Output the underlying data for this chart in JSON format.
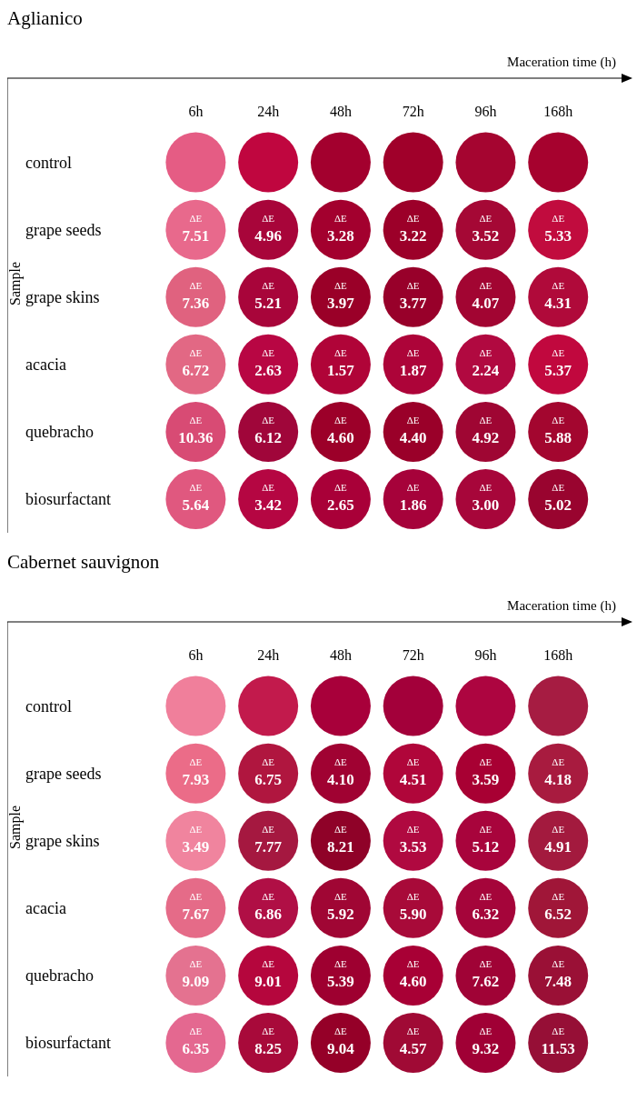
{
  "chart_data": [
    {
      "type": "heatmap",
      "title": "Aglianico",
      "xlabel": "Maceration time (h)",
      "ylabel": "Sample",
      "categories": [
        "6h",
        "24h",
        "48h",
        "72h",
        "96h",
        "168h"
      ],
      "y_categories": [
        "control",
        "grape seeds",
        "grape skins",
        "acacia",
        "quebracho",
        "biosurfactant"
      ],
      "cells": [
        [
          null,
          null,
          null,
          null,
          null,
          null
        ],
        [
          7.51,
          4.96,
          3.28,
          3.22,
          3.52,
          5.33
        ],
        [
          7.36,
          5.21,
          3.97,
          3.77,
          4.07,
          4.31
        ],
        [
          6.72,
          2.63,
          1.57,
          1.87,
          2.24,
          5.37
        ],
        [
          10.36,
          6.12,
          4.6,
          4.4,
          4.92,
          5.88
        ],
        [
          5.64,
          3.42,
          2.65,
          1.86,
          3.0,
          5.02
        ]
      ],
      "cell_labels": [
        [
          null,
          null,
          null,
          null,
          null,
          null
        ],
        [
          "7.51",
          "4.96",
          "3.28",
          "3.22",
          "3.52",
          "5.33"
        ],
        [
          "7.36",
          "5.21",
          "3.97",
          "3.77",
          "4.07",
          "4.31"
        ],
        [
          "6.72",
          "2.63",
          "1.57",
          "1.87",
          "2.24",
          "5.37"
        ],
        [
          "10.36",
          "6.12",
          "4.60",
          "4.40",
          "4.92",
          "5.88"
        ],
        [
          "5.64",
          "3.42",
          "2.65",
          "1.86",
          "3.00",
          "5.02"
        ]
      ],
      "annotations": [
        "ΔE"
      ],
      "data_labels": true,
      "colors": [
        [
          "#e55c84",
          "#c0063f",
          "#a3002e",
          "#a0002a",
          "#a50530",
          "#a6022e"
        ],
        [
          "#e8698c",
          "#a8053a",
          "#a3002e",
          "#9c0029",
          "#a50835",
          "#c10c3e"
        ],
        [
          "#e0627f",
          "#a8053a",
          "#9a0028",
          "#98002a",
          "#a20532",
          "#b00a3a"
        ],
        [
          "#e26884",
          "#b80643",
          "#b00438",
          "#ad0439",
          "#b10940",
          "#c1083e"
        ],
        [
          "#d84b74",
          "#a0063a",
          "#9c0029",
          "#9a0029",
          "#9f0633",
          "#a3062f"
        ],
        [
          "#e0587f",
          "#b50642",
          "#a90038",
          "#a6023a",
          "#a7063a",
          "#99042f"
        ]
      ]
    },
    {
      "type": "heatmap",
      "title": "Cabernet sauvignon",
      "xlabel": "Maceration time (h)",
      "ylabel": "Sample",
      "categories": [
        "6h",
        "24h",
        "48h",
        "72h",
        "96h",
        "168h"
      ],
      "y_categories": [
        "control",
        "grape seeds",
        "grape skins",
        "acacia",
        "quebracho",
        "biosurfactant"
      ],
      "cells": [
        [
          null,
          null,
          null,
          null,
          null,
          null
        ],
        [
          7.93,
          6.75,
          4.1,
          4.51,
          3.59,
          4.18
        ],
        [
          3.49,
          7.77,
          8.21,
          3.53,
          5.12,
          4.91
        ],
        [
          7.67,
          6.86,
          5.92,
          5.9,
          6.32,
          6.52
        ],
        [
          9.09,
          9.01,
          5.39,
          4.6,
          7.62,
          7.48
        ],
        [
          6.35,
          8.25,
          9.04,
          4.57,
          9.32,
          11.53
        ]
      ],
      "cell_labels": [
        [
          null,
          null,
          null,
          null,
          null,
          null
        ],
        [
          "7.93",
          "6.75",
          "4.10",
          "4.51",
          "3.59",
          "4.18"
        ],
        [
          "3.49",
          "7.77",
          "8.21",
          "3.53",
          "5.12",
          "4.91"
        ],
        [
          "7.67",
          "6.86",
          "5.92",
          "5.90",
          "6.32",
          "6.52"
        ],
        [
          "9.09",
          "9.01",
          "5.39",
          "4.60",
          "7.62",
          "7.48"
        ],
        [
          "6.35",
          "8.25",
          "9.04",
          "4.57",
          "9.32",
          "11.53"
        ]
      ],
      "annotations": [
        "ΔE"
      ],
      "data_labels": true,
      "colors": [
        [
          "#f07f9b",
          "#c21a4c",
          "#a8003a",
          "#a3003a",
          "#ad0540",
          "#a61c42"
        ],
        [
          "#eb6c88",
          "#b0163f",
          "#a00232",
          "#b0063a",
          "#a80033",
          "#a81b3f"
        ],
        [
          "#f0849e",
          "#a51840",
          "#8f0228",
          "#b00940",
          "#a8043c",
          "#a31a3e"
        ],
        [
          "#e56b88",
          "#b00f45",
          "#a00634",
          "#a80a39",
          "#a5053a",
          "#a01638"
        ],
        [
          "#e47290",
          "#b5063d",
          "#9e0030",
          "#a80035",
          "#a00336",
          "#9a1036"
        ],
        [
          "#e46890",
          "#a80a3a",
          "#950028",
          "#a00a35",
          "#a00035",
          "#960f36"
        ]
      ]
    }
  ]
}
